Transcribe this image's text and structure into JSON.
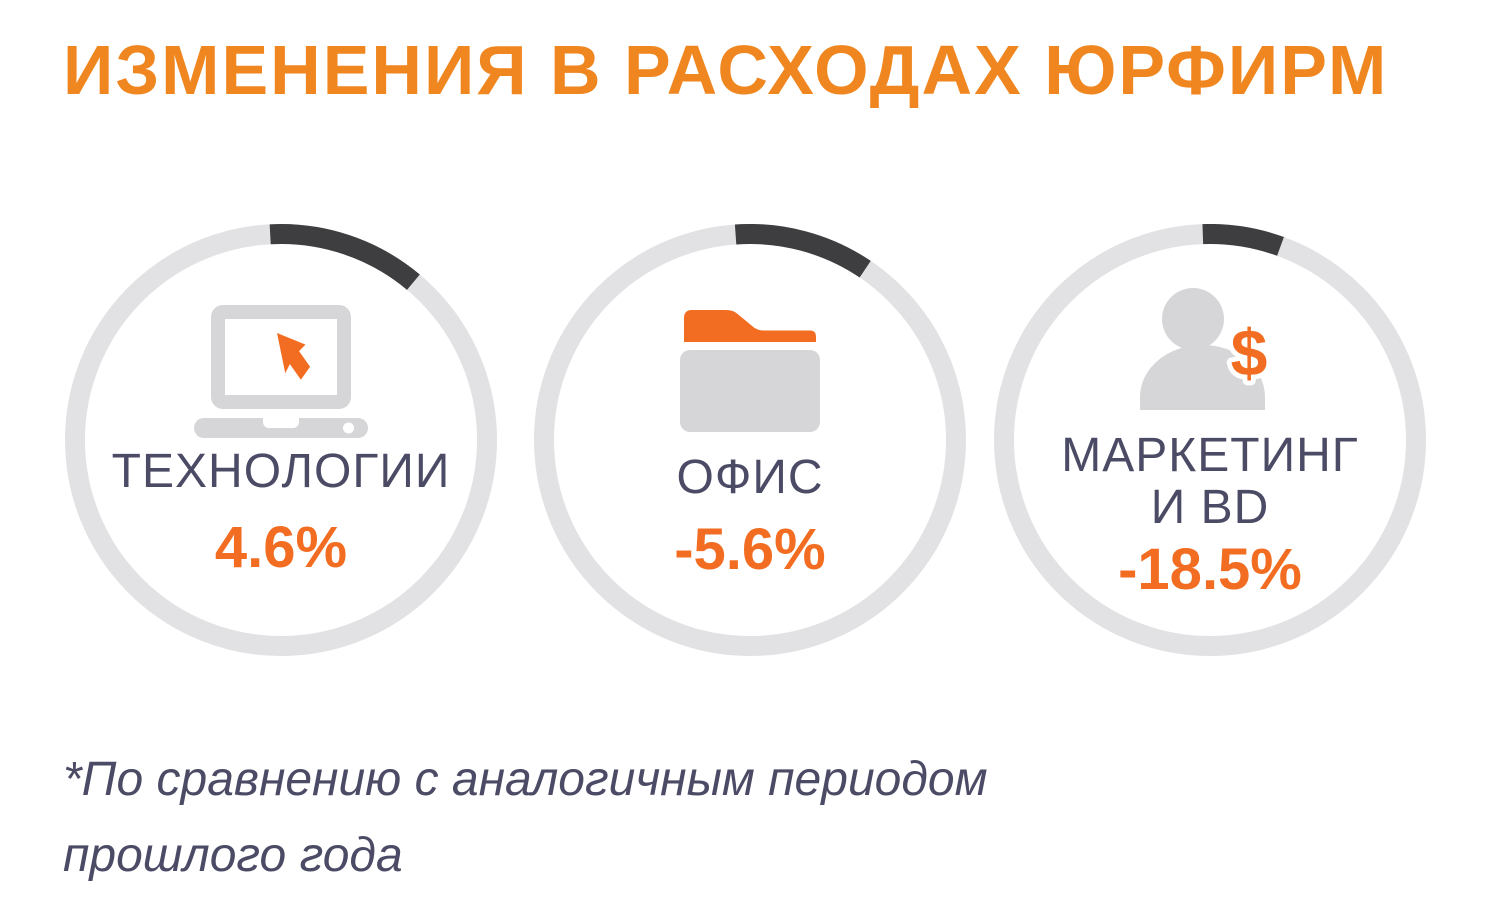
{
  "title": "ИЗМЕНЕНИЯ В РАСХОДАХ ЮРФИРМ",
  "colors": {
    "title_orange": "#F0861F",
    "accent_orange": "#F26D21",
    "dark_text": "#4B4B66",
    "arc_dark": "#3E3E40",
    "ring_gray": "#E2E2E4",
    "icon_gray": "#D6D6D8"
  },
  "gauges": [
    {
      "label": "ТЕХНОЛОГИИ",
      "value": "4.6%",
      "icon": "laptop-cursor-icon",
      "arc_start_deg": -3,
      "arc_end_deg": 40
    },
    {
      "label": "ОФИС",
      "value": "-5.6%",
      "icon": "folder-icon",
      "arc_start_deg": -4,
      "arc_end_deg": 34
    },
    {
      "label": "МАРКЕТИНГ",
      "label_line2": "И BD",
      "value": "-18.5%",
      "icon": "person-dollar-icon",
      "arc_start_deg": -2,
      "arc_end_deg": 20
    }
  ],
  "footnote": {
    "line1": "*По сравнению с аналогичным периодом",
    "line2": "прошлого года"
  },
  "chart_data": {
    "type": "pie",
    "subtype": "gauge-rings",
    "title": "ИЗМЕНЕНИЯ В РАСХОДАХ ЮРФИРМ",
    "categories": [
      "ТЕХНОЛОГИИ",
      "ОФИС",
      "МАРКЕТИНГ И BD"
    ],
    "values": [
      4.6,
      -5.6,
      -18.5
    ],
    "unit": "%",
    "annotations": [
      "*По сравнению с аналогичным периодом прошлого года"
    ],
    "legend_position": "none",
    "arc_segments_deg": [
      {
        "start": -3,
        "end": 40
      },
      {
        "start": -4,
        "end": 34
      },
      {
        "start": -2,
        "end": 20
      }
    ]
  }
}
